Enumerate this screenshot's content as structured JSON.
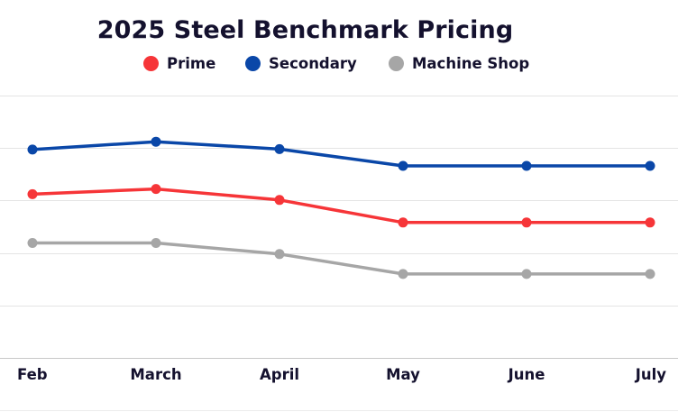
{
  "chart_data": {
    "type": "line",
    "title": "2025 Steel Benchmark Pricing",
    "categories": [
      "Feb",
      "March",
      "April",
      "May",
      "June",
      "July"
    ],
    "series": [
      {
        "name": "Prime",
        "color": "#f63538",
        "values": [
          1012,
          1022,
          1001,
          958,
          958,
          958
        ]
      },
      {
        "name": "Secondary",
        "color": "#0a47a8",
        "values": [
          1097,
          1112,
          1098,
          1066,
          1066,
          1066
        ]
      },
      {
        "name": "Machine Shop",
        "color": "#a6a6a6",
        "values": [
          919,
          919,
          898,
          860,
          860,
          860
        ]
      }
    ],
    "ylim": [
      700,
      1200
    ],
    "yticks": [
      700,
      800,
      900,
      1000,
      1100,
      1200
    ],
    "ytick_labels_shown": false,
    "grid": true,
    "legend_position": "top"
  }
}
